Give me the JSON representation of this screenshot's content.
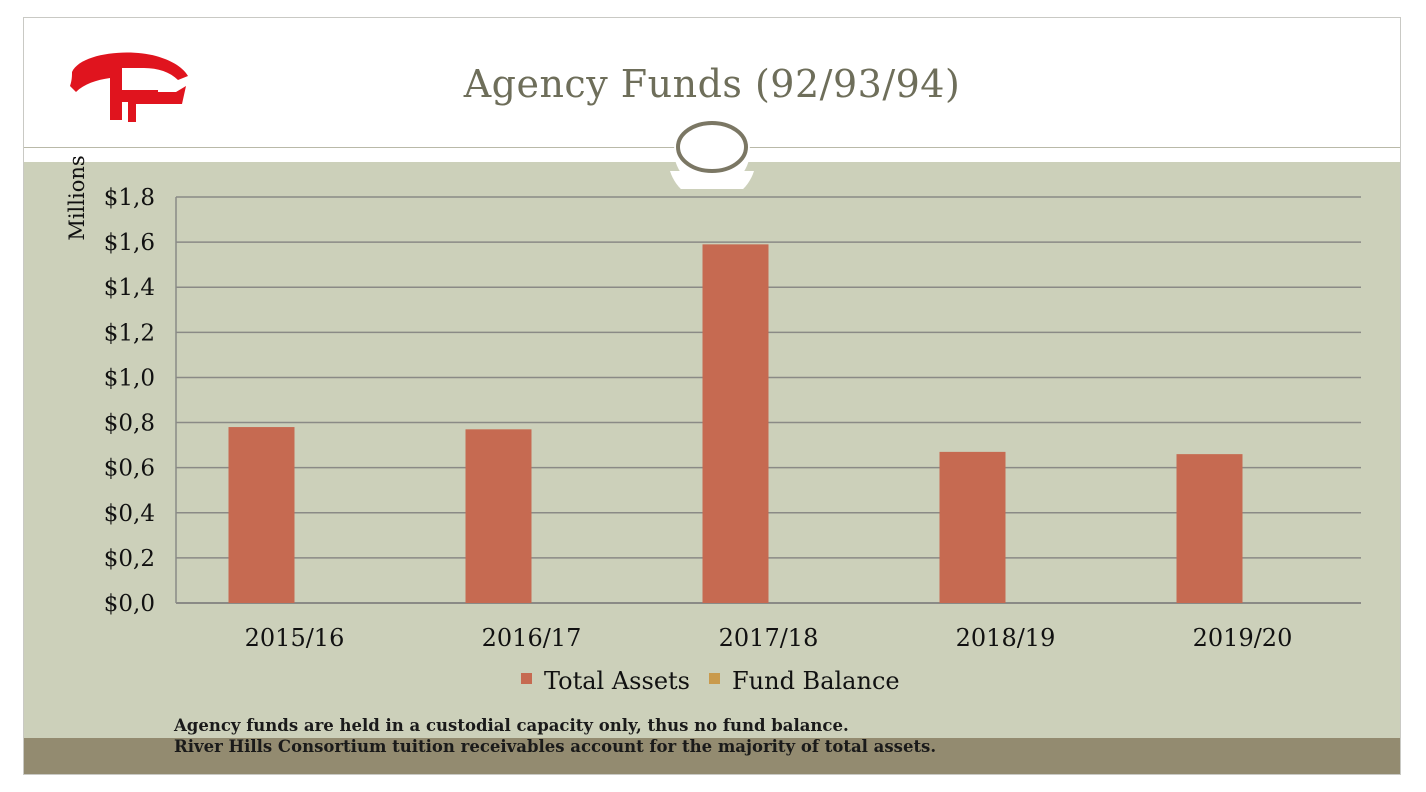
{
  "slide": {
    "title": "Agency Funds (92/93/94)",
    "notes": [
      "Agency funds are held in a custodial capacity only, thus no fund balance.",
      "River Hills Consortium tuition receivables account for the majority of total assets."
    ]
  },
  "colors": {
    "total_assets": "#c66a51",
    "fund_balance": "#c99a4c",
    "content_bg": "#ccd0ba",
    "footer_band": "#938b70",
    "logo_red": "#e0141e"
  },
  "chart_data": {
    "type": "bar",
    "title": "",
    "xlabel": "",
    "ylabel": "Millions",
    "categories": [
      "2015/16",
      "2016/17",
      "2017/18",
      "2018/19",
      "2019/20"
    ],
    "series": [
      {
        "name": "Total Assets",
        "values": [
          0.78,
          0.77,
          1.59,
          0.67,
          0.66
        ]
      },
      {
        "name": "Fund Balance",
        "values": [
          0,
          0,
          0,
          0,
          0
        ]
      }
    ],
    "ylim": [
      0,
      1.8
    ],
    "yticks": [
      "$0,0",
      "$0,2",
      "$0,4",
      "$0,6",
      "$0,8",
      "$1,0",
      "$1,2",
      "$1,4",
      "$1,6",
      "$1,8"
    ],
    "grid": true,
    "legend": "bottom"
  }
}
